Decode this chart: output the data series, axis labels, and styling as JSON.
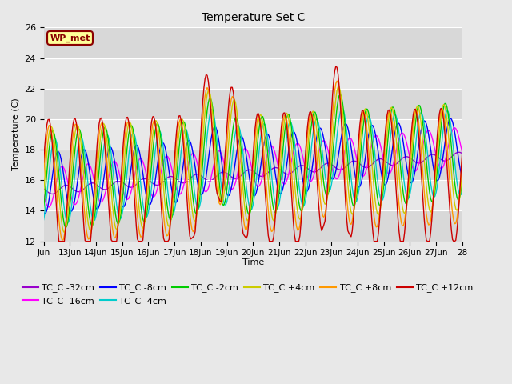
{
  "title": "Temperature Set C",
  "xlabel": "Time",
  "ylabel": "Temperature (C)",
  "ylim": [
    12,
    26
  ],
  "xlim": [
    0,
    384
  ],
  "background_color": "#e8e8e8",
  "plot_bg_color": "#e8e8e8",
  "series_colors": {
    "TC_C -32cm": "#9900cc",
    "TC_C -16cm": "#ff00ff",
    "TC_C -8cm": "#0000ff",
    "TC_C -4cm": "#00cccc",
    "TC_C -2cm": "#00cc00",
    "TC_C +4cm": "#cccc00",
    "TC_C +8cm": "#ff9900",
    "TC_C +12cm": "#cc0000"
  },
  "tick_labels": [
    "Jun",
    "13Jun",
    "14Jun",
    "15Jun",
    "16Jun",
    "17Jun",
    "18Jun",
    "19Jun",
    "20Jun",
    "21Jun",
    "22Jun",
    "23Jun",
    "24Jun",
    "25Jun",
    "26Jun",
    "27Jun",
    "28"
  ],
  "tick_positions": [
    0,
    24,
    48,
    72,
    96,
    120,
    144,
    168,
    192,
    216,
    240,
    264,
    288,
    312,
    336,
    360,
    384
  ],
  "wp_met_label": "WP_met",
  "yticks": [
    12,
    14,
    16,
    18,
    20,
    22,
    24,
    26
  ],
  "band_colors": [
    "#d8d8d8",
    "#e8e8e8"
  ]
}
